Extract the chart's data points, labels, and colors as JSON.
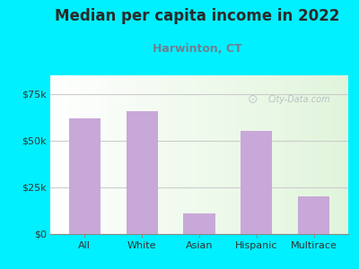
{
  "title": "Median per capita income in 2022",
  "subtitle": "Harwinton, CT",
  "categories": [
    "All",
    "White",
    "Asian",
    "Hispanic",
    "Multirace"
  ],
  "values": [
    62000,
    66000,
    11000,
    55000,
    20000
  ],
  "bar_color": "#c8a8d8",
  "background_outer": "#00f0ff",
  "title_color": "#2a2a2a",
  "subtitle_color": "#708090",
  "ylabel_color": "#333333",
  "xlabel_color": "#333333",
  "ylim": [
    0,
    85000
  ],
  "yticks": [
    0,
    25000,
    50000,
    75000
  ],
  "ytick_labels": [
    "$0",
    "$25k",
    "$50k",
    "$75k"
  ],
  "watermark": "City-Data.com",
  "watermark_color": "#b0b8c0",
  "grid_color": "#cccccc",
  "title_fontsize": 12,
  "subtitle_fontsize": 9
}
